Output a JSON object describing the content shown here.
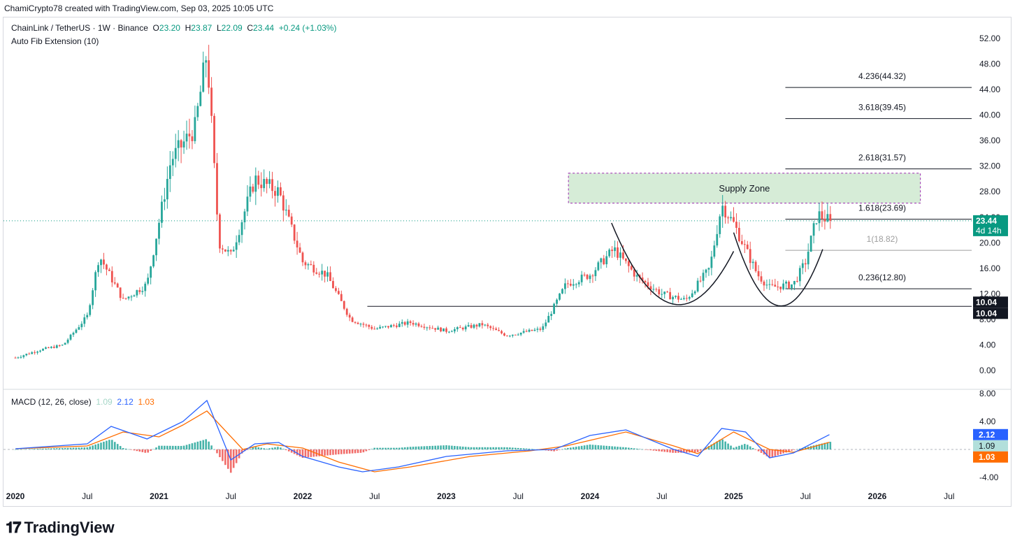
{
  "header": {
    "attribution": "ChamiCrypto78 created with TradingView.com, Sep 03, 2025 10:05 UTC"
  },
  "legend": {
    "symbol": "ChainLink / TetherUS · 1W · Binance",
    "open_label": "O",
    "open": "23.20",
    "high_label": "H",
    "high": "23.87",
    "low_label": "L",
    "low": "22.09",
    "close_label": "C",
    "close": "23.44",
    "change": "+0.24 (+1.03%)",
    "indicator": "Auto Fib Extension (10)"
  },
  "macd_legend": {
    "label": "MACD (12, 26, close)",
    "hist": "1.09",
    "macd": "2.12",
    "signal": "1.03"
  },
  "brand": {
    "name": "TradingView"
  },
  "colors": {
    "up": "#26a69a",
    "down": "#ef5350",
    "macd": "#2962ff",
    "signal": "#ff6d00",
    "hist_up": "#26a69a",
    "hist_down": "#ef5350",
    "zone": "#c8e6c9"
  },
  "chart_data": [
    {
      "type": "candlestick",
      "title": "ChainLink / TetherUS · 1W · Binance",
      "x_tick_labels": [
        "2020",
        "Jul",
        "2021",
        "Jul",
        "2022",
        "Jul",
        "2023",
        "Jul",
        "2024",
        "Jul",
        "2025",
        "Jul",
        "2026",
        "Jul"
      ],
      "y_tick_labels": [
        "52.00",
        "48.00",
        "44.00",
        "40.00",
        "36.00",
        "32.00",
        "28.00",
        "24.00",
        "20.00",
        "16.00",
        "12.00",
        "8.00",
        "4.00",
        "0.00"
      ],
      "ylim": [
        0,
        52
      ],
      "last_price": "23.44",
      "countdown": "4d 14h",
      "support_label_1": "10.04",
      "support_label_2": "10.04",
      "support_level": 10.04,
      "supply_zone": {
        "label": "Supply Zone",
        "low": 26.2,
        "high": 30.9
      },
      "fib_levels": [
        {
          "ratio": "4.236",
          "label": "4.236(44.32)",
          "value": 44.32
        },
        {
          "ratio": "3.618",
          "label": "3.618(39.45)",
          "value": 39.45
        },
        {
          "ratio": "2.618",
          "label": "2.618(31.57)",
          "value": 31.57
        },
        {
          "ratio": "1.618",
          "label": "1.618(23.69)",
          "value": 23.69
        },
        {
          "ratio": "1",
          "label": "1(18.82)",
          "value": 18.82
        },
        {
          "ratio": "0.236",
          "label": "0.236(12.80)",
          "value": 12.8
        }
      ],
      "price_path": [
        {
          "date": "2020-01",
          "close": 2.0
        },
        {
          "date": "2020-03",
          "close": 3.2
        },
        {
          "date": "2020-05",
          "close": 4.0
        },
        {
          "date": "2020-07",
          "close": 8.5
        },
        {
          "date": "2020-08",
          "close": 18.0
        },
        {
          "date": "2020-10",
          "close": 11.0
        },
        {
          "date": "2020-12",
          "close": 13.5
        },
        {
          "date": "2021-02",
          "close": 33.0
        },
        {
          "date": "2021-04",
          "close": 38.0
        },
        {
          "date": "2021-05",
          "close": 50.0
        },
        {
          "date": "2021-06",
          "close": 20.0
        },
        {
          "date": "2021-07",
          "close": 18.0
        },
        {
          "date": "2021-09",
          "close": 30.0
        },
        {
          "date": "2021-11",
          "close": 28.0
        },
        {
          "date": "2022-01",
          "close": 17.0
        },
        {
          "date": "2022-03",
          "close": 15.0
        },
        {
          "date": "2022-05",
          "close": 8.0
        },
        {
          "date": "2022-07",
          "close": 6.5
        },
        {
          "date": "2022-10",
          "close": 7.5
        },
        {
          "date": "2023-01",
          "close": 6.2
        },
        {
          "date": "2023-04",
          "close": 7.2
        },
        {
          "date": "2023-06",
          "close": 5.5
        },
        {
          "date": "2023-09",
          "close": 6.5
        },
        {
          "date": "2023-11",
          "close": 13.5
        },
        {
          "date": "2024-01",
          "close": 15.0
        },
        {
          "date": "2024-03",
          "close": 19.0
        },
        {
          "date": "2024-05",
          "close": 14.5
        },
        {
          "date": "2024-07",
          "close": 12.0
        },
        {
          "date": "2024-09",
          "close": 11.0
        },
        {
          "date": "2024-11",
          "close": 16.0
        },
        {
          "date": "2024-12",
          "close": 26.0
        },
        {
          "date": "2025-01",
          "close": 23.0
        },
        {
          "date": "2025-03",
          "close": 15.0
        },
        {
          "date": "2025-04",
          "close": 13.0
        },
        {
          "date": "2025-06",
          "close": 13.5
        },
        {
          "date": "2025-07",
          "close": 17.0
        },
        {
          "date": "2025-08",
          "close": 24.5
        },
        {
          "date": "2025-09",
          "close": 23.44
        }
      ]
    },
    {
      "type": "line",
      "title": "MACD (12, 26, close)",
      "y_tick_labels": [
        "8.00",
        "4.00",
        "-4.00"
      ],
      "ylim": [
        -5,
        8
      ],
      "current": {
        "histogram": "1.09",
        "macd": "2.12",
        "signal": "1.03"
      },
      "series": [
        {
          "name": "MACD",
          "points": [
            {
              "date": "2020-01",
              "value": 0.1
            },
            {
              "date": "2020-07",
              "value": 0.8
            },
            {
              "date": "2020-09",
              "value": 3.3
            },
            {
              "date": "2020-12",
              "value": 1.5
            },
            {
              "date": "2021-03",
              "value": 4.0
            },
            {
              "date": "2021-05",
              "value": 7.0
            },
            {
              "date": "2021-07",
              "value": -1.5
            },
            {
              "date": "2021-09",
              "value": 0.8
            },
            {
              "date": "2021-11",
              "value": 1.0
            },
            {
              "date": "2022-01",
              "value": -1.0
            },
            {
              "date": "2022-04",
              "value": -2.5
            },
            {
              "date": "2022-06",
              "value": -3.2
            },
            {
              "date": "2022-09",
              "value": -2.5
            },
            {
              "date": "2023-01",
              "value": -1.0
            },
            {
              "date": "2023-06",
              "value": -0.2
            },
            {
              "date": "2023-10",
              "value": 0.0
            },
            {
              "date": "2024-01",
              "value": 2.0
            },
            {
              "date": "2024-04",
              "value": 2.8
            },
            {
              "date": "2024-08",
              "value": 0.0
            },
            {
              "date": "2024-10",
              "value": -1.0
            },
            {
              "date": "2024-12",
              "value": 3.0
            },
            {
              "date": "2025-02",
              "value": 2.5
            },
            {
              "date": "2025-04",
              "value": -1.2
            },
            {
              "date": "2025-06",
              "value": -0.5
            },
            {
              "date": "2025-09",
              "value": 2.12
            }
          ]
        },
        {
          "name": "Signal",
          "points": [
            {
              "date": "2020-01",
              "value": 0.1
            },
            {
              "date": "2020-07",
              "value": 0.5
            },
            {
              "date": "2020-10",
              "value": 2.5
            },
            {
              "date": "2021-01",
              "value": 1.8
            },
            {
              "date": "2021-03",
              "value": 3.5
            },
            {
              "date": "2021-05",
              "value": 5.5
            },
            {
              "date": "2021-08",
              "value": 0.0
            },
            {
              "date": "2021-10",
              "value": 0.8
            },
            {
              "date": "2022-01",
              "value": 0.2
            },
            {
              "date": "2022-04",
              "value": -1.8
            },
            {
              "date": "2022-07",
              "value": -3.2
            },
            {
              "date": "2022-10",
              "value": -2.5
            },
            {
              "date": "2023-03",
              "value": -1.0
            },
            {
              "date": "2023-08",
              "value": -0.2
            },
            {
              "date": "2023-11",
              "value": 0.5
            },
            {
              "date": "2024-04",
              "value": 2.5
            },
            {
              "date": "2024-08",
              "value": 0.5
            },
            {
              "date": "2024-10",
              "value": -0.6
            },
            {
              "date": "2025-01",
              "value": 2.5
            },
            {
              "date": "2025-04",
              "value": 0.0
            },
            {
              "date": "2025-06",
              "value": -0.4
            },
            {
              "date": "2025-09",
              "value": 1.03
            }
          ]
        }
      ]
    }
  ]
}
